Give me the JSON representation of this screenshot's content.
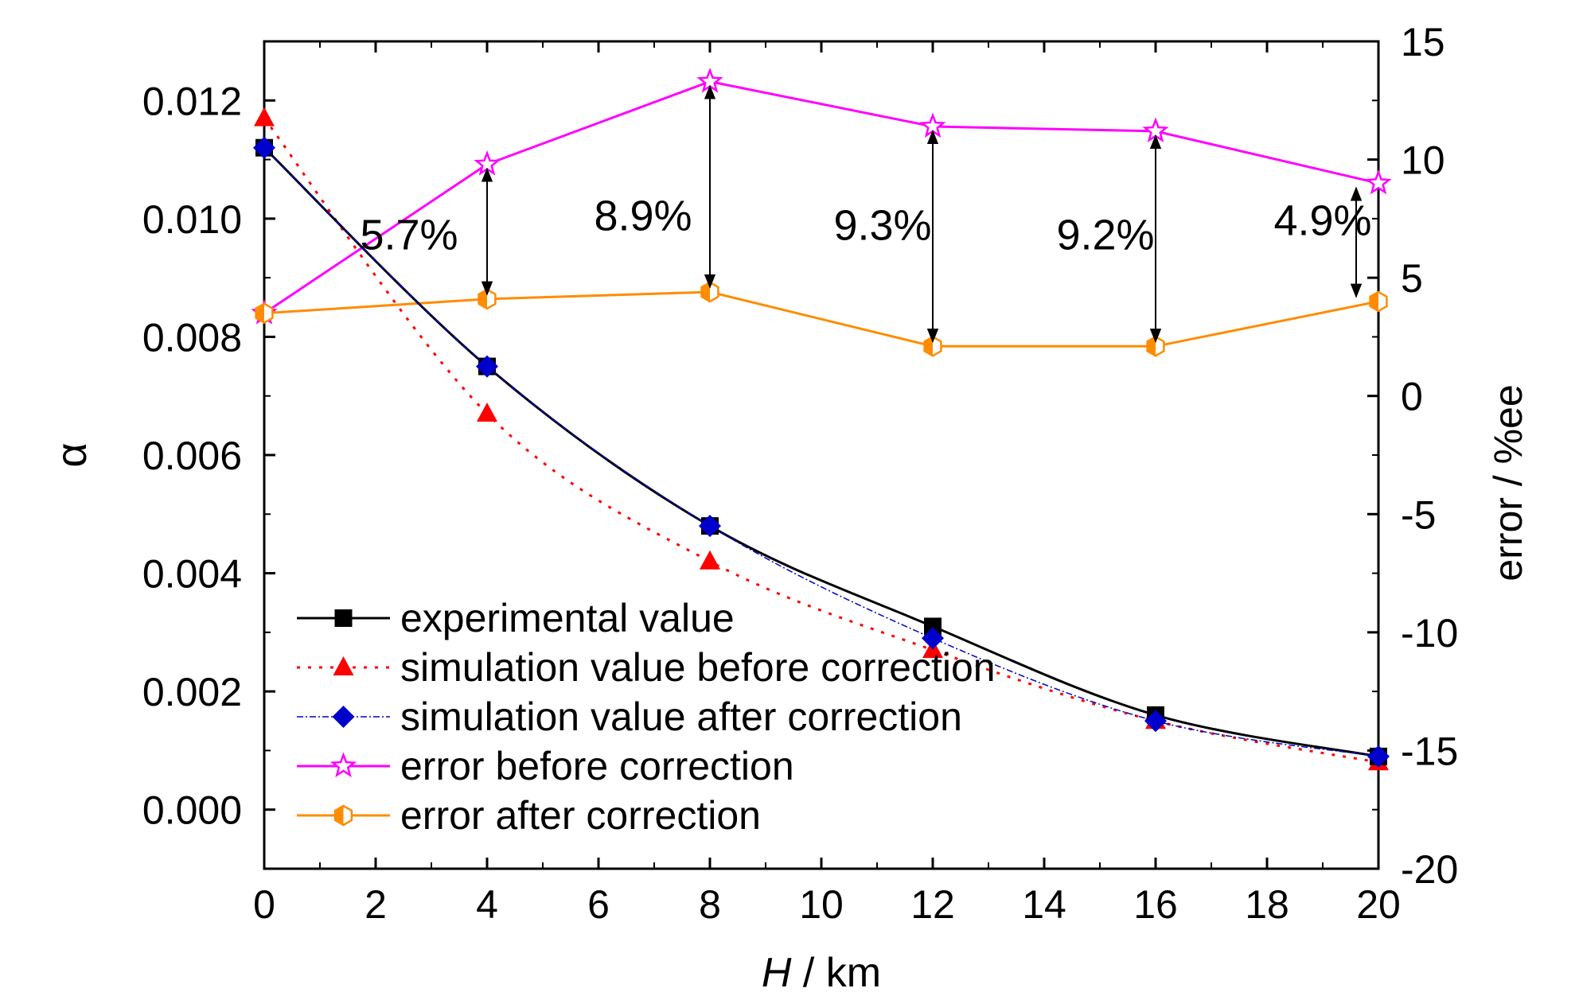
{
  "chart_data": {
    "type": "line",
    "xlabel_italic": "H",
    "xlabel_rest": " / km",
    "ylabel_left": "α",
    "ylabel_right": "error / %ee",
    "x": [
      0,
      4,
      8,
      12,
      16,
      20
    ],
    "xlim": [
      0,
      20
    ],
    "x_ticks": [
      0,
      2,
      4,
      6,
      8,
      10,
      12,
      14,
      16,
      18,
      20
    ],
    "y_left_lim": [
      -0.001,
      0.013
    ],
    "y_left_ticks": [
      0.0,
      0.002,
      0.004,
      0.006,
      0.008,
      0.01,
      0.012
    ],
    "y_left_tick_labels": [
      "0.000",
      "0.002",
      "0.004",
      "0.006",
      "0.008",
      "0.010",
      "0.012"
    ],
    "y_right_lim": [
      -20,
      15
    ],
    "y_right_ticks": [
      -20,
      -15,
      -10,
      -5,
      0,
      5,
      10,
      15
    ],
    "y_right_tick_labels": [
      "-20",
      "-15",
      "-10",
      "-5",
      "0",
      "5",
      "10",
      "15"
    ],
    "series": [
      {
        "name": "experimental value",
        "axis": "left",
        "color": "#000000",
        "dash": "",
        "marker": "square",
        "smooth": true,
        "width": 3,
        "values": [
          0.0112,
          0.0075,
          0.0048,
          0.0031,
          0.0016,
          0.0009
        ]
      },
      {
        "name": "simulation value before correction",
        "axis": "left",
        "color": "#ff0000",
        "dash": "4,10",
        "marker": "triangle",
        "smooth": true,
        "width": 3,
        "values": [
          0.0117,
          0.0067,
          0.0042,
          0.0027,
          0.0015,
          0.0008
        ]
      },
      {
        "name": "simulation value after correction",
        "axis": "left",
        "color": "#0000cc",
        "dash": "8,3,2,3",
        "marker": "diamond",
        "smooth": true,
        "width": 1.5,
        "values": [
          0.0112,
          0.0075,
          0.0048,
          0.0029,
          0.0015,
          0.0009
        ]
      },
      {
        "name": "error before correction",
        "axis": "right",
        "color": "#ff00ff",
        "dash": "",
        "marker": "star",
        "smooth": false,
        "width": 3,
        "values": [
          3.5,
          9.8,
          13.3,
          11.4,
          11.2,
          9.0
        ]
      },
      {
        "name": "error after correction",
        "axis": "right",
        "color": "#ff8c00",
        "dash": "",
        "marker": "hexagon",
        "smooth": false,
        "width": 3,
        "values": [
          3.5,
          4.1,
          4.4,
          2.1,
          2.1,
          4.0
        ]
      }
    ],
    "annotations": [
      {
        "text": "5.7%",
        "x": 4,
        "from": 9.8,
        "to": 4.1,
        "label_x": 2.6,
        "label_y": 6.2
      },
      {
        "text": "8.9%",
        "x": 8,
        "from": 13.3,
        "to": 4.4,
        "label_x": 6.8,
        "label_y": 7.0
      },
      {
        "text": "9.3%",
        "x": 12,
        "from": 11.4,
        "to": 2.1,
        "label_x": 11.1,
        "label_y": 6.6
      },
      {
        "text": "9.2%",
        "x": 16,
        "from": 11.2,
        "to": 2.1,
        "label_x": 15.1,
        "label_y": 6.2
      },
      {
        "text": "4.9%",
        "x": 19.6,
        "from": 9.0,
        "to": 4.0,
        "label_x": 19.0,
        "label_y": 6.8
      }
    ],
    "legend_position": "bottom-left",
    "grid": false
  }
}
